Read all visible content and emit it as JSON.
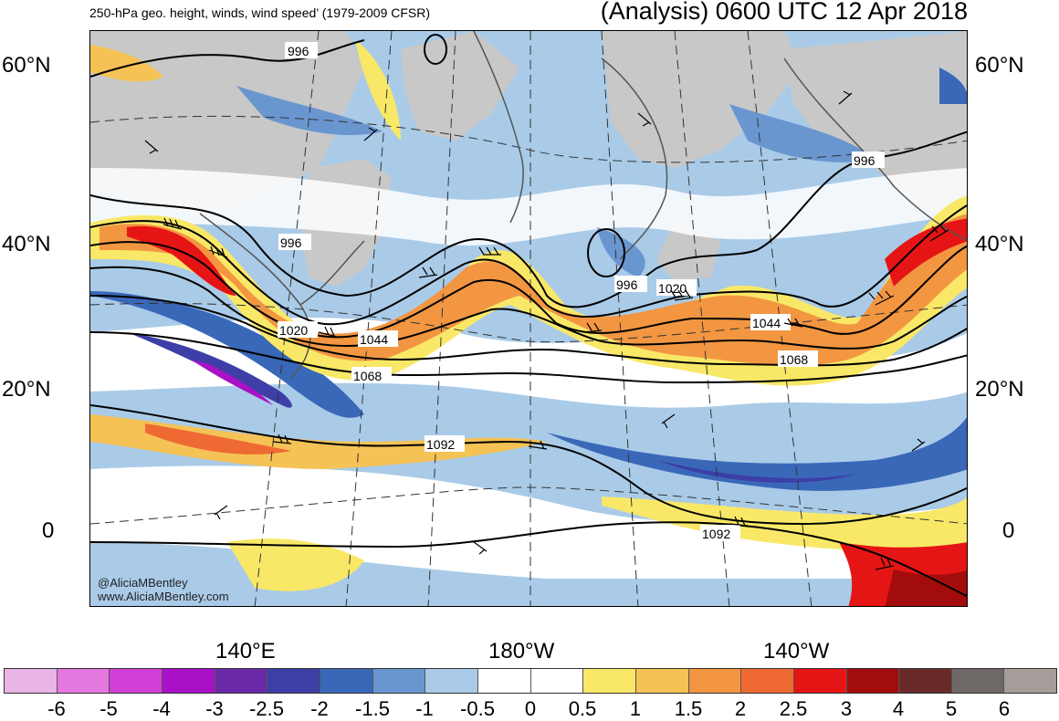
{
  "header": {
    "left_title": "250-hPa geo. height, winds, wind speed’ (1979-2009 CFSR)",
    "right_title": "(Analysis) 0600 UTC 12 Apr 2018"
  },
  "map": {
    "lat_labels": [
      "60°N",
      "40°N",
      "20°N",
      "0"
    ],
    "lon_labels": [
      "140°E",
      "180°W",
      "140°W"
    ],
    "contour_labels": [
      "996",
      "996",
      "996",
      "996",
      "1020",
      "1020",
      "1044",
      "1044",
      "1068",
      "1068",
      "1092",
      "1092"
    ],
    "credit_handle": "@AliciaMBentley",
    "credit_url": "www.AliciaMBentley.com"
  },
  "colorbar": {
    "ticks": [
      "-6",
      "-5",
      "-4",
      "-3",
      "-2.5",
      "-2",
      "-1.5",
      "-1",
      "-0.5",
      "0",
      "0.5",
      "1",
      "1.5",
      "2",
      "2.5",
      "3",
      "4",
      "5",
      "6"
    ],
    "colors": [
      "#e9b5e6",
      "#e477e0",
      "#d23fd6",
      "#a811c6",
      "#6a2aa8",
      "#3d3ea6",
      "#3a68b8",
      "#6a96d0",
      "#a9cbe8",
      "#ffffff",
      "#ffffff",
      "#f9e867",
      "#f5c255",
      "#f29642",
      "#ef6a33",
      "#e61515",
      "#a30c0c",
      "#6b2a2a",
      "#6e6966",
      "#a69c99"
    ]
  },
  "colors": {
    "land": "#c8c8c8",
    "jet_core": "#e61515",
    "anomaly_negative_strong": "#6a2aa8",
    "anomaly_negative": "#6a96d0"
  }
}
